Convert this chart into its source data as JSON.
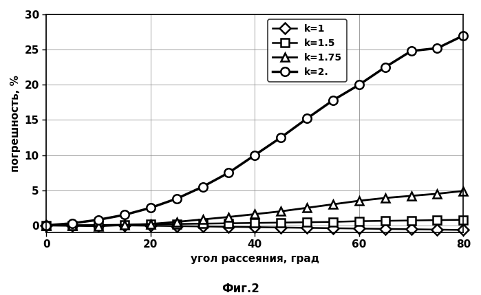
{
  "xlabel": "угол рассеяния, град",
  "ylabel": "погрешность, %",
  "caption": "Фиг.2",
  "xlim": [
    0,
    80
  ],
  "ylim": [
    -1,
    30
  ],
  "yticks": [
    0,
    5,
    10,
    15,
    20,
    25,
    30
  ],
  "xticks": [
    0,
    20,
    40,
    60,
    80
  ],
  "series": [
    {
      "label": "k=1",
      "marker": "D",
      "linewidth": 1.8,
      "markersize": 8,
      "x": [
        0,
        5,
        10,
        15,
        20,
        25,
        30,
        35,
        40,
        45,
        50,
        55,
        60,
        65,
        70,
        75,
        80
      ],
      "y": [
        0,
        0.0,
        0.0,
        0.0,
        -0.05,
        -0.1,
        -0.15,
        -0.2,
        -0.25,
        -0.3,
        -0.35,
        -0.4,
        -0.45,
        -0.5,
        -0.55,
        -0.6,
        -0.65
      ]
    },
    {
      "label": "k=1.5",
      "marker": "s",
      "linewidth": 1.8,
      "markersize": 8,
      "x": [
        0,
        5,
        10,
        15,
        20,
        25,
        30,
        35,
        40,
        45,
        50,
        55,
        60,
        65,
        70,
        75,
        80
      ],
      "y": [
        0,
        0.02,
        0.05,
        0.1,
        0.15,
        0.2,
        0.25,
        0.3,
        0.35,
        0.4,
        0.45,
        0.5,
        0.6,
        0.65,
        0.7,
        0.75,
        0.8
      ]
    },
    {
      "label": "k=1.75",
      "marker": "^",
      "linewidth": 2.0,
      "markersize": 9,
      "x": [
        0,
        5,
        10,
        15,
        20,
        25,
        30,
        35,
        40,
        45,
        50,
        55,
        60,
        65,
        70,
        75,
        80
      ],
      "y": [
        0,
        -0.05,
        -0.1,
        0.05,
        0.2,
        0.5,
        0.85,
        1.2,
        1.6,
        2.0,
        2.5,
        3.0,
        3.5,
        3.9,
        4.2,
        4.5,
        4.9
      ]
    },
    {
      "label": "k=2.",
      "marker": "o",
      "linewidth": 2.5,
      "markersize": 9,
      "x": [
        0,
        5,
        10,
        15,
        20,
        25,
        30,
        35,
        40,
        45,
        50,
        55,
        60,
        65,
        70,
        75,
        80
      ],
      "y": [
        0,
        0.3,
        0.8,
        1.5,
        2.5,
        3.8,
        5.5,
        7.5,
        10.0,
        12.5,
        15.2,
        17.8,
        20.0,
        22.5,
        24.8,
        25.2,
        27.0
      ]
    }
  ],
  "background_color": "#ffffff",
  "color": "#000000",
  "xlabel_fontsize": 11,
  "ylabel_fontsize": 11,
  "tick_fontsize": 11,
  "legend_fontsize": 10,
  "caption_fontsize": 12
}
